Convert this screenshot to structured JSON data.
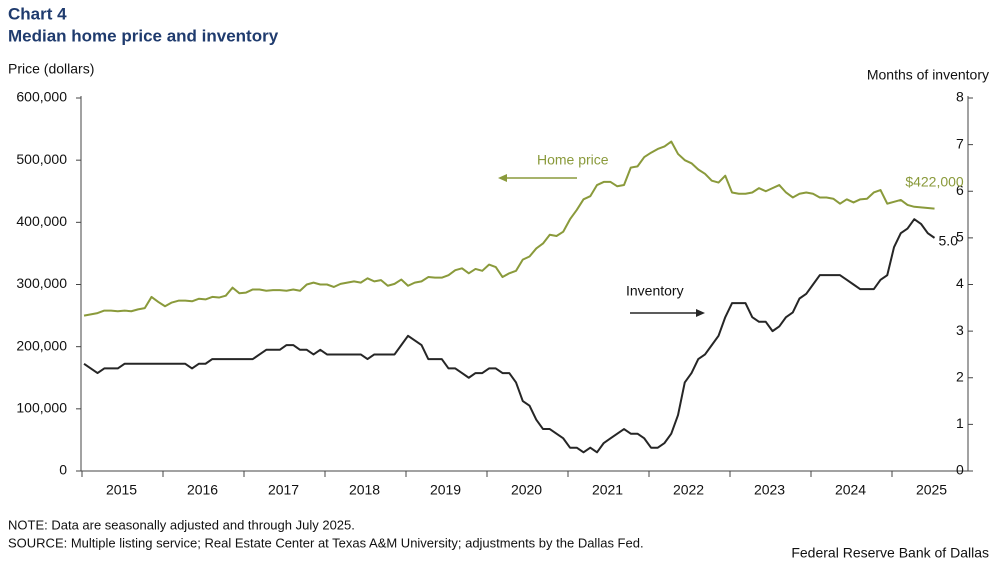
{
  "chart_data": {
    "type": "line",
    "title": "Chart 4",
    "subtitle": "Median home price and inventory",
    "y_label": "Price (dollars)",
    "y2_label": "Months of inventory",
    "categories": [
      null,
      null,
      null,
      null,
      null,
      null,
      "2015",
      null,
      null,
      null,
      null,
      null,
      null,
      null,
      null,
      null,
      null,
      null,
      "2016",
      null,
      null,
      null,
      null,
      null,
      null,
      null,
      null,
      null,
      null,
      null,
      "2017",
      null,
      null,
      null,
      null,
      null,
      null,
      null,
      null,
      null,
      null,
      null,
      "2018",
      null,
      null,
      null,
      null,
      null,
      null,
      null,
      null,
      null,
      null,
      null,
      "2019",
      null,
      null,
      null,
      null,
      null,
      null,
      null,
      null,
      null,
      null,
      null,
      "2020",
      null,
      null,
      null,
      null,
      null,
      null,
      null,
      null,
      null,
      null,
      null,
      "2021",
      null,
      null,
      null,
      null,
      null,
      null,
      null,
      null,
      null,
      null,
      null,
      "2022",
      null,
      null,
      null,
      null,
      null,
      null,
      null,
      null,
      null,
      null,
      null,
      "2023",
      null,
      null,
      null,
      null,
      null,
      null,
      null,
      null,
      null,
      null,
      null,
      "2024",
      null,
      null,
      null,
      null,
      null,
      null,
      null,
      null,
      null,
      null,
      null,
      "2025"
    ],
    "series": [
      {
        "name": "Home price",
        "color": "#8a9a3b",
        "axis": "y",
        "values": [
          250000,
          252000,
          254000,
          258000,
          258000,
          257000,
          258000,
          257000,
          260000,
          262000,
          280000,
          272000,
          265000,
          271000,
          274000,
          274000,
          273000,
          277000,
          276000,
          280000,
          279000,
          282000,
          295000,
          286000,
          287000,
          292000,
          292000,
          290000,
          291000,
          291000,
          290000,
          292000,
          290000,
          300000,
          303000,
          300000,
          300000,
          296000,
          301000,
          303000,
          305000,
          303000,
          310000,
          305000,
          307000,
          298000,
          301000,
          308000,
          298000,
          303000,
          305000,
          312000,
          311000,
          311000,
          315000,
          323000,
          326000,
          318000,
          325000,
          322000,
          332000,
          328000,
          312000,
          318000,
          322000,
          340000,
          345000,
          358000,
          366000,
          380000,
          378000,
          385000,
          405000,
          420000,
          437000,
          442000,
          460000,
          465000,
          465000,
          458000,
          460000,
          488000,
          490000,
          505000,
          512000,
          518000,
          522000,
          530000,
          510000,
          500000,
          495000,
          485000,
          478000,
          467000,
          464000,
          475000,
          448000,
          446000,
          446000,
          448000,
          455000,
          450000,
          455000,
          460000,
          448000,
          440000,
          446000,
          448000,
          446000,
          440000,
          440000,
          438000,
          430000,
          437000,
          432000,
          437000,
          438000,
          448000,
          452000,
          430000,
          433000,
          436000,
          428000,
          425000,
          424000,
          423000,
          422000
        ],
        "value_labels": [
          null,
          null,
          null,
          null,
          null,
          null,
          null,
          null,
          null,
          null,
          null,
          null,
          null,
          null,
          null,
          null,
          null,
          null,
          null,
          null,
          null,
          null,
          null,
          null,
          null,
          null,
          null,
          null,
          null,
          null,
          null,
          null,
          null,
          null,
          null,
          null,
          null,
          null,
          null,
          null,
          null,
          null,
          null,
          null,
          null,
          null,
          null,
          null,
          null,
          null,
          null,
          null,
          null,
          null,
          null,
          null,
          null,
          null,
          null,
          null,
          null,
          null,
          null,
          null,
          null,
          null,
          null,
          null,
          null,
          null,
          null,
          null,
          null,
          null,
          null,
          null,
          null,
          null,
          null,
          null,
          null,
          null,
          null,
          null,
          null,
          null,
          null,
          null,
          null,
          null,
          null,
          null,
          null,
          null,
          null,
          null,
          null,
          null,
          null,
          null,
          null,
          null,
          null,
          null,
          null,
          null,
          null,
          null,
          null,
          null,
          null,
          null,
          null,
          null,
          null,
          null,
          null,
          null,
          null,
          null,
          null,
          null,
          null,
          null,
          null,
          null,
          "$422,000"
        ]
      },
      {
        "name": "Inventory",
        "color": "#262626",
        "axis": "y2",
        "values": [
          2.3,
          2.2,
          2.1,
          2.2,
          2.2,
          2.2,
          2.3,
          2.3,
          2.3,
          2.3,
          2.3,
          2.3,
          2.3,
          2.3,
          2.3,
          2.3,
          2.2,
          2.3,
          2.3,
          2.4,
          2.4,
          2.4,
          2.4,
          2.4,
          2.4,
          2.4,
          2.5,
          2.6,
          2.6,
          2.6,
          2.7,
          2.7,
          2.6,
          2.6,
          2.5,
          2.6,
          2.5,
          2.5,
          2.5,
          2.5,
          2.5,
          2.5,
          2.4,
          2.5,
          2.5,
          2.5,
          2.5,
          2.7,
          2.9,
          2.8,
          2.7,
          2.4,
          2.4,
          2.4,
          2.2,
          2.2,
          2.1,
          2.0,
          2.1,
          2.1,
          2.2,
          2.2,
          2.1,
          2.1,
          1.9,
          1.5,
          1.4,
          1.1,
          0.9,
          0.9,
          0.8,
          0.7,
          0.5,
          0.5,
          0.4,
          0.5,
          0.4,
          0.6,
          0.7,
          0.8,
          0.9,
          0.8,
          0.8,
          0.7,
          0.5,
          0.5,
          0.6,
          0.8,
          1.2,
          1.9,
          2.1,
          2.4,
          2.5,
          2.7,
          2.9,
          3.3,
          3.6,
          3.6,
          3.6,
          3.3,
          3.2,
          3.2,
          3.0,
          3.1,
          3.3,
          3.4,
          3.7,
          3.8,
          4.0,
          4.2,
          4.2,
          4.2,
          4.2,
          4.1,
          4.0,
          3.9,
          3.9,
          3.9,
          4.1,
          4.2,
          4.8,
          5.1,
          5.2,
          5.4,
          5.3,
          5.1,
          5.0
        ],
        "value_labels": [
          null,
          null,
          null,
          null,
          null,
          null,
          null,
          null,
          null,
          null,
          null,
          null,
          null,
          null,
          null,
          null,
          null,
          null,
          null,
          null,
          null,
          null,
          null,
          null,
          null,
          null,
          null,
          null,
          null,
          null,
          null,
          null,
          null,
          null,
          null,
          null,
          null,
          null,
          null,
          null,
          null,
          null,
          null,
          null,
          null,
          null,
          null,
          null,
          null,
          null,
          null,
          null,
          null,
          null,
          null,
          null,
          null,
          null,
          null,
          null,
          null,
          null,
          null,
          null,
          null,
          null,
          null,
          null,
          null,
          null,
          null,
          null,
          null,
          null,
          null,
          null,
          null,
          null,
          null,
          null,
          null,
          null,
          null,
          null,
          null,
          null,
          null,
          null,
          null,
          null,
          null,
          null,
          null,
          null,
          null,
          null,
          null,
          null,
          null,
          null,
          null,
          null,
          null,
          null,
          null,
          null,
          null,
          null,
          null,
          null,
          null,
          null,
          null,
          null,
          null,
          null,
          null,
          null,
          null,
          null,
          null,
          null,
          null,
          null,
          null,
          null,
          "5.0"
        ]
      }
    ],
    "ylim": [
      0,
      600000
    ],
    "yticks": [
      0,
      {
        "value": 100000,
        "label": "100,000"
      },
      {
        "value": 200000,
        "label": "200,000"
      },
      {
        "value": 300000,
        "label": "300,000"
      },
      {
        "value": 400000,
        "label": "400,000"
      },
      {
        "value": 500000,
        "label": "500,000"
      },
      {
        "value": 600000,
        "label": "600,000"
      }
    ],
    "y2lim": [
      0,
      8
    ],
    "y2ticks": [
      0,
      1,
      2,
      3,
      4,
      5,
      6,
      7,
      8
    ],
    "annotations": [
      "Home price",
      "Inventory"
    ],
    "note": "NOTE: Data are seasonally adjusted and through July 2025.",
    "source": "SOURCE: Multiple listing service; Real Estate Center at Texas A&M University; adjustments by the Dallas Fed.",
    "credit": "Federal Reserve Bank of Dallas"
  }
}
